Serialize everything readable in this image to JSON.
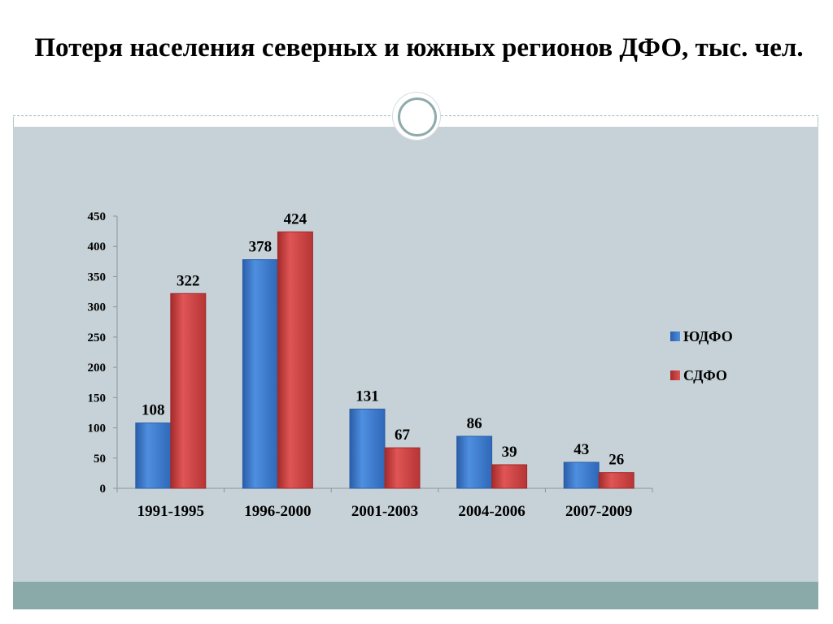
{
  "slide": {
    "title": "Потеря населения северных и южных регионов ДФО, тыс. чел."
  },
  "colors": {
    "series1": "#3f7fd4",
    "series1_dark": "#2a5ea8",
    "series2": "#d64545",
    "series2_dark": "#a32a2a",
    "band": "#c6d2d8",
    "footer": "#8aaaaa"
  },
  "chart_data": {
    "type": "bar",
    "title": "Потеря населения северных и южных регионов ДФО, тыс. чел.",
    "categories": [
      "1991-1995",
      "1996-2000",
      "2001-2003",
      "2004-2006",
      "2007-2009"
    ],
    "series": [
      {
        "name": "ЮДФО",
        "values": [
          108,
          378,
          131,
          86,
          43
        ]
      },
      {
        "name": "СДФО",
        "values": [
          322,
          424,
          67,
          39,
          26
        ]
      }
    ],
    "ylim": [
      0,
      450
    ],
    "yticks": [
      0,
      50,
      100,
      150,
      200,
      250,
      300,
      350,
      400,
      450
    ],
    "xlabel": "",
    "ylabel": "",
    "grid": false,
    "legend": "right",
    "data_labels": true
  }
}
